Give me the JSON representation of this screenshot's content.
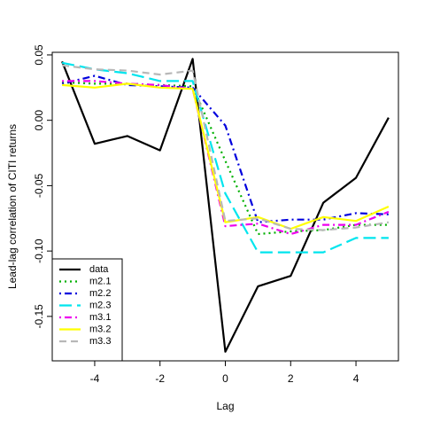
{
  "chart_data": {
    "type": "line",
    "title": "",
    "xlabel": "Lag",
    "ylabel": "Lead-lag correlation of CITI returns",
    "x": [
      -5,
      -4,
      -3,
      -2,
      -1,
      0,
      1,
      2,
      3,
      4,
      5
    ],
    "xlim": [
      -5.3,
      5.3
    ],
    "ylim": [
      -0.184,
      0.052
    ],
    "xticks": [
      -4,
      -2,
      0,
      2,
      4
    ],
    "yticks": [
      -0.15,
      -0.1,
      -0.05,
      0.0,
      0.05
    ],
    "xtick_labels": [
      "-4",
      "-2",
      "0",
      "2",
      "4"
    ],
    "ytick_labels": [
      "-0.15",
      "-0.10",
      "-0.05",
      "0.00",
      "0.05"
    ],
    "grid": false,
    "legend": "bottom-left",
    "series": [
      {
        "name": "data",
        "color": "#000000",
        "dash": "solid",
        "values": [
          0.045,
          -0.018,
          -0.012,
          -0.023,
          0.047,
          -0.177,
          -0.127,
          -0.119,
          -0.063,
          -0.044,
          0.002
        ]
      },
      {
        "name": "m2.1",
        "color": "#00b000",
        "dash": "dotted",
        "values": [
          0.029,
          0.028,
          0.028,
          0.027,
          0.026,
          -0.031,
          -0.087,
          -0.085,
          -0.084,
          -0.08,
          -0.08
        ]
      },
      {
        "name": "m2.2",
        "color": "#0000dd",
        "dash": "dashdot",
        "values": [
          0.028,
          0.034,
          0.027,
          0.026,
          0.025,
          -0.004,
          -0.078,
          -0.076,
          -0.076,
          -0.071,
          -0.072
        ]
      },
      {
        "name": "m2.3",
        "color": "#00e5ee",
        "dash": "longdash",
        "values": [
          0.044,
          0.039,
          0.036,
          0.03,
          0.03,
          -0.056,
          -0.101,
          -0.101,
          -0.101,
          -0.09,
          -0.09
        ]
      },
      {
        "name": "m3.1",
        "color": "#ee00ee",
        "dash": "dashdot",
        "values": [
          0.03,
          0.03,
          0.028,
          0.027,
          0.024,
          -0.081,
          -0.079,
          -0.087,
          -0.08,
          -0.08,
          -0.07
        ]
      },
      {
        "name": "m3.2",
        "color": "#ffff00",
        "dash": "solid",
        "values": [
          0.027,
          0.025,
          0.028,
          0.025,
          0.024,
          -0.078,
          -0.074,
          -0.083,
          -0.074,
          -0.077,
          -0.066
        ]
      },
      {
        "name": "m3.3",
        "color": "#b8b8b8",
        "dash": "dashed",
        "values": [
          0.042,
          0.039,
          0.038,
          0.035,
          0.038,
          -0.077,
          -0.075,
          -0.083,
          -0.084,
          -0.082,
          -0.078
        ]
      }
    ]
  }
}
